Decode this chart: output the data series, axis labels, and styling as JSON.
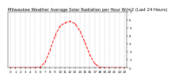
{
  "title": "Milwaukee Weather Average Solar Radiation per Hour W/m2 (Last 24 Hours)",
  "hours": [
    0,
    1,
    2,
    3,
    4,
    5,
    6,
    7,
    8,
    9,
    10,
    11,
    12,
    13,
    14,
    15,
    16,
    17,
    18,
    19,
    20,
    21,
    22,
    23
  ],
  "values": [
    0,
    0,
    0,
    0,
    0,
    2,
    5,
    70,
    220,
    400,
    520,
    560,
    580,
    550,
    460,
    320,
    160,
    50,
    5,
    0,
    0,
    0,
    0,
    0
  ],
  "line_color": "#ff0000",
  "bg_color": "#ffffff",
  "grid_color": "#888888",
  "ylim": [
    0,
    700
  ],
  "yticks": [
    0,
    100,
    200,
    300,
    400,
    500,
    600,
    700
  ],
  "ytick_labels": [
    "0",
    "1",
    "2",
    "3",
    "4",
    "5",
    "6",
    "7"
  ],
  "title_fontsize": 3.8,
  "tick_fontsize": 3.0,
  "line_width": 0.7,
  "marker_size": 1.2,
  "grid_linewidth": 0.3
}
